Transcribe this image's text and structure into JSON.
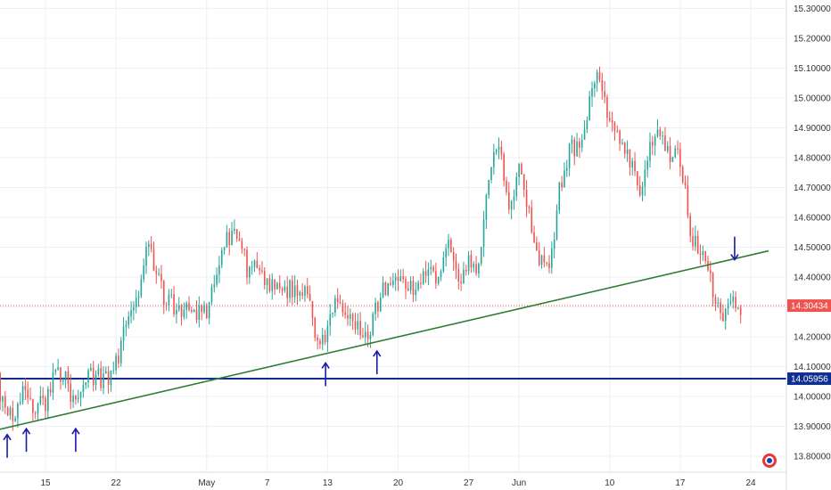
{
  "chart_data": {
    "type": "candlestick",
    "title": "",
    "xlabel": "",
    "ylabel": "",
    "ylim": [
      13.75,
      15.32
    ],
    "x_range": [
      "2018-04-10",
      "2018-06-25"
    ],
    "y_ticks": [
      "15.30000",
      "15.20000",
      "15.10000",
      "15.00000",
      "14.90000",
      "14.80000",
      "14.70000",
      "14.60000",
      "14.50000",
      "14.40000",
      "14.30000",
      "14.20000",
      "14.10000",
      "14.00000",
      "13.90000",
      "13.80000"
    ],
    "x_ticks": [
      {
        "label": "15",
        "date": "2018-04-15"
      },
      {
        "label": "22",
        "date": "2018-04-22"
      },
      {
        "label": "May",
        "date": "2018-05-01"
      },
      {
        "label": "7",
        "date": "2018-05-07"
      },
      {
        "label": "13",
        "date": "2018-05-13"
      },
      {
        "label": "20",
        "date": "2018-05-20"
      },
      {
        "label": "27",
        "date": "2018-05-27"
      },
      {
        "label": "Jun",
        "date": "2018-06-01"
      },
      {
        "label": "10",
        "date": "2018-06-10"
      },
      {
        "label": "17",
        "date": "2018-06-17"
      },
      {
        "label": "24",
        "date": "2018-06-24"
      }
    ],
    "grid": true,
    "colors": {
      "up": "#26a69a",
      "down": "#ef5350",
      "support": "#0d2f91",
      "trend": "#2e7d32",
      "arrow": "#1a1aa8",
      "current": "#ef5350"
    },
    "current_price": {
      "value": 14.30434,
      "label": "14.30434"
    },
    "support_line": {
      "value": 14.05956,
      "label": "14.05956"
    },
    "trend_line": [
      {
        "date": "2018-04-10",
        "value": 13.885
      },
      {
        "date": "2018-06-24",
        "value": 14.455
      }
    ],
    "arrows": [
      {
        "date": "2018-04-11.2",
        "value": 13.89,
        "direction": "up"
      },
      {
        "date": "2018-04-13.1",
        "value": 13.91,
        "direction": "up"
      },
      {
        "date": "2018-04-18.0",
        "value": 13.91,
        "direction": "up"
      },
      {
        "date": "2018-05-12.8",
        "value": 14.13,
        "direction": "up"
      },
      {
        "date": "2018-05-17.9",
        "value": 14.17,
        "direction": "up"
      },
      {
        "date": "2018-06-22.4",
        "value": 14.44,
        "direction": "down"
      }
    ],
    "close_path": [
      [
        "2018-04-10",
        14.08
      ],
      [
        "2018-04-11",
        13.93
      ],
      [
        "2018-04-12",
        13.95
      ],
      [
        "2018-04-13",
        14.03
      ],
      [
        "2018-04-14",
        13.96
      ],
      [
        "2018-04-15",
        13.98
      ],
      [
        "2018-04-16",
        14.07
      ],
      [
        "2018-04-17",
        14.05
      ],
      [
        "2018-04-18",
        13.96
      ],
      [
        "2018-04-19",
        14.06
      ],
      [
        "2018-04-20",
        14.07
      ],
      [
        "2018-04-21",
        14.05
      ],
      [
        "2018-04-22",
        14.11
      ],
      [
        "2018-04-23",
        14.25
      ],
      [
        "2018-04-24",
        14.32
      ],
      [
        "2018-04-25",
        14.52
      ],
      [
        "2018-04-26",
        14.4
      ],
      [
        "2018-04-27",
        14.32
      ],
      [
        "2018-04-28",
        14.3
      ],
      [
        "2018-04-29",
        14.3
      ],
      [
        "2018-04-30",
        14.28
      ],
      [
        "2018-05-01",
        14.29
      ],
      [
        "2018-05-02",
        14.4
      ],
      [
        "2018-05-03",
        14.52
      ],
      [
        "2018-05-04",
        14.55
      ],
      [
        "2018-05-05",
        14.43
      ],
      [
        "2018-05-06",
        14.44
      ],
      [
        "2018-05-07",
        14.39
      ],
      [
        "2018-05-08",
        14.36
      ],
      [
        "2018-05-09",
        14.35
      ],
      [
        "2018-05-10",
        14.37
      ],
      [
        "2018-05-11",
        14.33
      ],
      [
        "2018-05-12",
        14.18
      ],
      [
        "2018-05-13",
        14.22
      ],
      [
        "2018-05-14",
        14.35
      ],
      [
        "2018-05-15",
        14.28
      ],
      [
        "2018-05-16",
        14.25
      ],
      [
        "2018-05-17",
        14.19
      ],
      [
        "2018-05-18",
        14.32
      ],
      [
        "2018-05-19",
        14.38
      ],
      [
        "2018-05-20",
        14.42
      ],
      [
        "2018-05-21",
        14.36
      ],
      [
        "2018-05-22",
        14.38
      ],
      [
        "2018-05-23",
        14.42
      ],
      [
        "2018-05-24",
        14.4
      ],
      [
        "2018-05-25",
        14.5
      ],
      [
        "2018-05-26",
        14.4
      ],
      [
        "2018-05-27",
        14.45
      ],
      [
        "2018-05-28",
        14.42
      ],
      [
        "2018-05-29",
        14.75
      ],
      [
        "2018-05-30",
        14.82
      ],
      [
        "2018-05-31",
        14.65
      ],
      [
        "2018-06-01",
        14.75
      ],
      [
        "2018-06-02",
        14.6
      ],
      [
        "2018-06-03",
        14.45
      ],
      [
        "2018-06-04",
        14.42
      ],
      [
        "2018-06-05",
        14.7
      ],
      [
        "2018-06-06",
        14.82
      ],
      [
        "2018-06-07",
        14.85
      ],
      [
        "2018-06-08",
        14.98
      ],
      [
        "2018-06-09",
        15.08
      ],
      [
        "2018-06-10",
        14.92
      ],
      [
        "2018-06-11",
        14.85
      ],
      [
        "2018-06-12",
        14.78
      ],
      [
        "2018-06-13",
        14.68
      ],
      [
        "2018-06-14",
        14.85
      ],
      [
        "2018-06-15",
        14.88
      ],
      [
        "2018-06-16",
        14.82
      ],
      [
        "2018-06-17",
        14.8
      ],
      [
        "2018-06-18",
        14.55
      ],
      [
        "2018-06-19",
        14.48
      ],
      [
        "2018-06-20",
        14.4
      ],
      [
        "2018-06-21",
        14.25
      ],
      [
        "2018-06-22",
        14.35
      ],
      [
        "2018-06-23",
        14.3
      ]
    ]
  }
}
